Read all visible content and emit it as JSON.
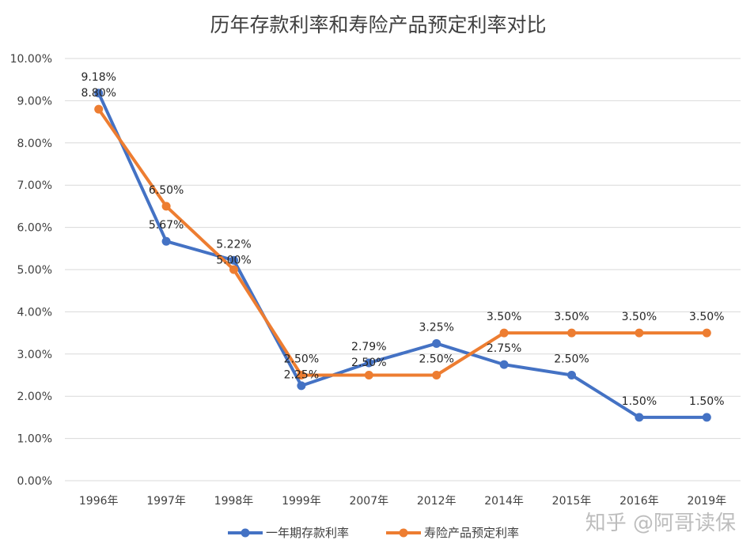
{
  "watermark": "知乎 @阿哥读保",
  "chart_data": {
    "type": "line",
    "title": "历年存款利率和寿险产品预定利率对比",
    "xlabel": "",
    "ylabel": "",
    "categories": [
      "1996年",
      "1997年",
      "1998年",
      "1999年",
      "2007年",
      "2012年",
      "2014年",
      "2015年",
      "2016年",
      "2019年"
    ],
    "ylim": [
      0,
      10
    ],
    "yticks": [
      "0.00%",
      "1.00%",
      "2.00%",
      "3.00%",
      "4.00%",
      "5.00%",
      "6.00%",
      "7.00%",
      "8.00%",
      "9.00%",
      "10.00%"
    ],
    "grid": true,
    "legend_position": "bottom",
    "series": [
      {
        "name": "一年期存款利率",
        "color": "#4472C4",
        "values": [
          9.18,
          5.67,
          5.22,
          2.25,
          2.79,
          3.25,
          2.75,
          2.5,
          1.5,
          1.5
        ],
        "labels": [
          "9.18%",
          "5.67%",
          "5.22%",
          "2.25%",
          "2.79%",
          "3.25%",
          "2.75%",
          "2.50%",
          "1.50%",
          "1.50%"
        ]
      },
      {
        "name": "寿险产品预定利率",
        "color": "#ED7D31",
        "values": [
          8.8,
          6.5,
          5.0,
          2.5,
          2.5,
          2.5,
          3.5,
          3.5,
          3.5,
          3.5
        ],
        "labels": [
          "8.80%",
          "6.50%",
          "5.00%",
          "2.50%",
          "2.50%",
          "2.50%",
          "3.50%",
          "3.50%",
          "3.50%",
          "3.50%"
        ]
      }
    ]
  }
}
